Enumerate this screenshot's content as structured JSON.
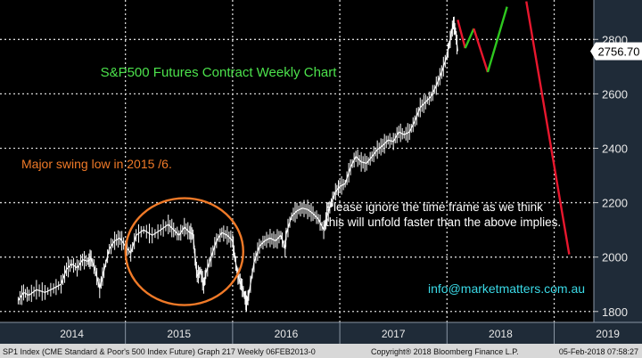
{
  "chart_data": {
    "type": "line",
    "title": "S&P500 Futures Contract Weekly Chart",
    "x_tick_labels": [
      "2014",
      "2015",
      "2016",
      "2017",
      "2018",
      "2019"
    ],
    "y_ticks": [
      1800,
      2000,
      2200,
      2400,
      2600,
      2800
    ],
    "ylim": [
      1760,
      2945
    ],
    "grid": true,
    "last_price": "2756.70",
    "series": [
      {
        "values": [
          [
            2014.0,
            1840
          ],
          [
            2014.05,
            1870
          ],
          [
            2014.1,
            1860
          ],
          [
            2014.17,
            1880
          ],
          [
            2014.25,
            1870
          ],
          [
            2014.33,
            1885
          ],
          [
            2014.4,
            1900
          ],
          [
            2014.45,
            1955
          ],
          [
            2014.5,
            1975
          ],
          [
            2014.55,
            1960
          ],
          [
            2014.6,
            1990
          ],
          [
            2014.65,
            1985
          ],
          [
            2014.68,
            1995
          ],
          [
            2014.72,
            1950
          ],
          [
            2014.76,
            1885
          ],
          [
            2014.8,
            1950
          ],
          [
            2014.85,
            2030
          ],
          [
            2014.9,
            2060
          ],
          [
            2014.95,
            2070
          ],
          [
            2015.0,
            2040
          ],
          [
            2015.05,
            2015
          ],
          [
            2015.1,
            2080
          ],
          [
            2015.17,
            2100
          ],
          [
            2015.25,
            2080
          ],
          [
            2015.33,
            2100
          ],
          [
            2015.4,
            2120
          ],
          [
            2015.45,
            2100
          ],
          [
            2015.5,
            2080
          ],
          [
            2015.55,
            2110
          ],
          [
            2015.6,
            2090
          ],
          [
            2015.63,
            2085
          ],
          [
            2015.65,
            2000
          ],
          [
            2015.67,
            1930
          ],
          [
            2015.7,
            1950
          ],
          [
            2015.73,
            1895
          ],
          [
            2015.75,
            1940
          ],
          [
            2015.8,
            2000
          ],
          [
            2015.85,
            2060
          ],
          [
            2015.9,
            2090
          ],
          [
            2015.95,
            2080
          ],
          [
            2016.0,
            2060
          ],
          [
            2016.02,
            2000
          ],
          [
            2016.05,
            1930
          ],
          [
            2016.08,
            1900
          ],
          [
            2016.11,
            1860
          ],
          [
            2016.13,
            1830
          ],
          [
            2016.15,
            1860
          ],
          [
            2016.2,
            1980
          ],
          [
            2016.25,
            2040
          ],
          [
            2016.3,
            2060
          ],
          [
            2016.35,
            2070
          ],
          [
            2016.4,
            2060
          ],
          [
            2016.45,
            2080
          ],
          [
            2016.49,
            2030
          ],
          [
            2016.5,
            2085
          ],
          [
            2016.55,
            2150
          ],
          [
            2016.6,
            2170
          ],
          [
            2016.65,
            2180
          ],
          [
            2016.7,
            2175
          ],
          [
            2016.75,
            2160
          ],
          [
            2016.8,
            2140
          ],
          [
            2016.85,
            2100
          ],
          [
            2016.88,
            2150
          ],
          [
            2016.92,
            2200
          ],
          [
            2016.96,
            2240
          ],
          [
            2017.0,
            2260
          ],
          [
            2017.05,
            2270
          ],
          [
            2017.1,
            2330
          ],
          [
            2017.15,
            2370
          ],
          [
            2017.2,
            2350
          ],
          [
            2017.25,
            2345
          ],
          [
            2017.3,
            2370
          ],
          [
            2017.35,
            2395
          ],
          [
            2017.4,
            2410
          ],
          [
            2017.45,
            2430
          ],
          [
            2017.5,
            2425
          ],
          [
            2017.55,
            2460
          ],
          [
            2017.6,
            2450
          ],
          [
            2017.65,
            2460
          ],
          [
            2017.7,
            2500
          ],
          [
            2017.75,
            2550
          ],
          [
            2017.8,
            2570
          ],
          [
            2017.85,
            2590
          ],
          [
            2017.9,
            2630
          ],
          [
            2017.95,
            2680
          ],
          [
            2018.0,
            2740
          ],
          [
            2018.03,
            2800
          ],
          [
            2018.06,
            2860
          ],
          [
            2018.08,
            2830
          ],
          [
            2018.1,
            2756.7
          ]
        ]
      }
    ],
    "projection_lines": [
      {
        "color": "#e8172e",
        "points": [
          [
            2018.1,
            2872
          ],
          [
            2018.17,
            2768
          ]
        ]
      },
      {
        "color": "#2ec81f",
        "points": [
          [
            2018.17,
            2768
          ],
          [
            2018.25,
            2840
          ]
        ]
      },
      {
        "color": "#e8172e",
        "points": [
          [
            2018.25,
            2840
          ],
          [
            2018.38,
            2680
          ]
        ]
      },
      {
        "color": "#2ec81f",
        "points": [
          [
            2018.38,
            2680
          ],
          [
            2018.56,
            2920
          ]
        ]
      },
      {
        "color": "#e8172e",
        "points": [
          [
            2018.74,
            2940
          ],
          [
            2019.14,
            2010
          ]
        ]
      }
    ],
    "annotations": {
      "swing_low": "Major swing low in 2015 /6.",
      "note_line1": "Please ignore the time frame as we think",
      "note_line2": "this will unfold faster than the above implies.",
      "contact": "info@marketmatters.com.au"
    },
    "footer_left": "SP1 Index (CME Standard & Poor's 500 Index Future) Graph 217  Weekly 06FEB2013-0",
    "footer_mid": "Copyright® 2018 Bloomberg Finance L.P.",
    "footer_right": "05-Feb-2018 07:58:27"
  },
  "colors": {
    "background": "#000000",
    "price": "#ffffff",
    "grid": "#d6d6d6",
    "title": "#4ce24c",
    "swing": "#f07a28",
    "contact": "#3ad9e6",
    "axis_bg": "#1f2b38",
    "footer_bg": "#d8d8d8"
  }
}
